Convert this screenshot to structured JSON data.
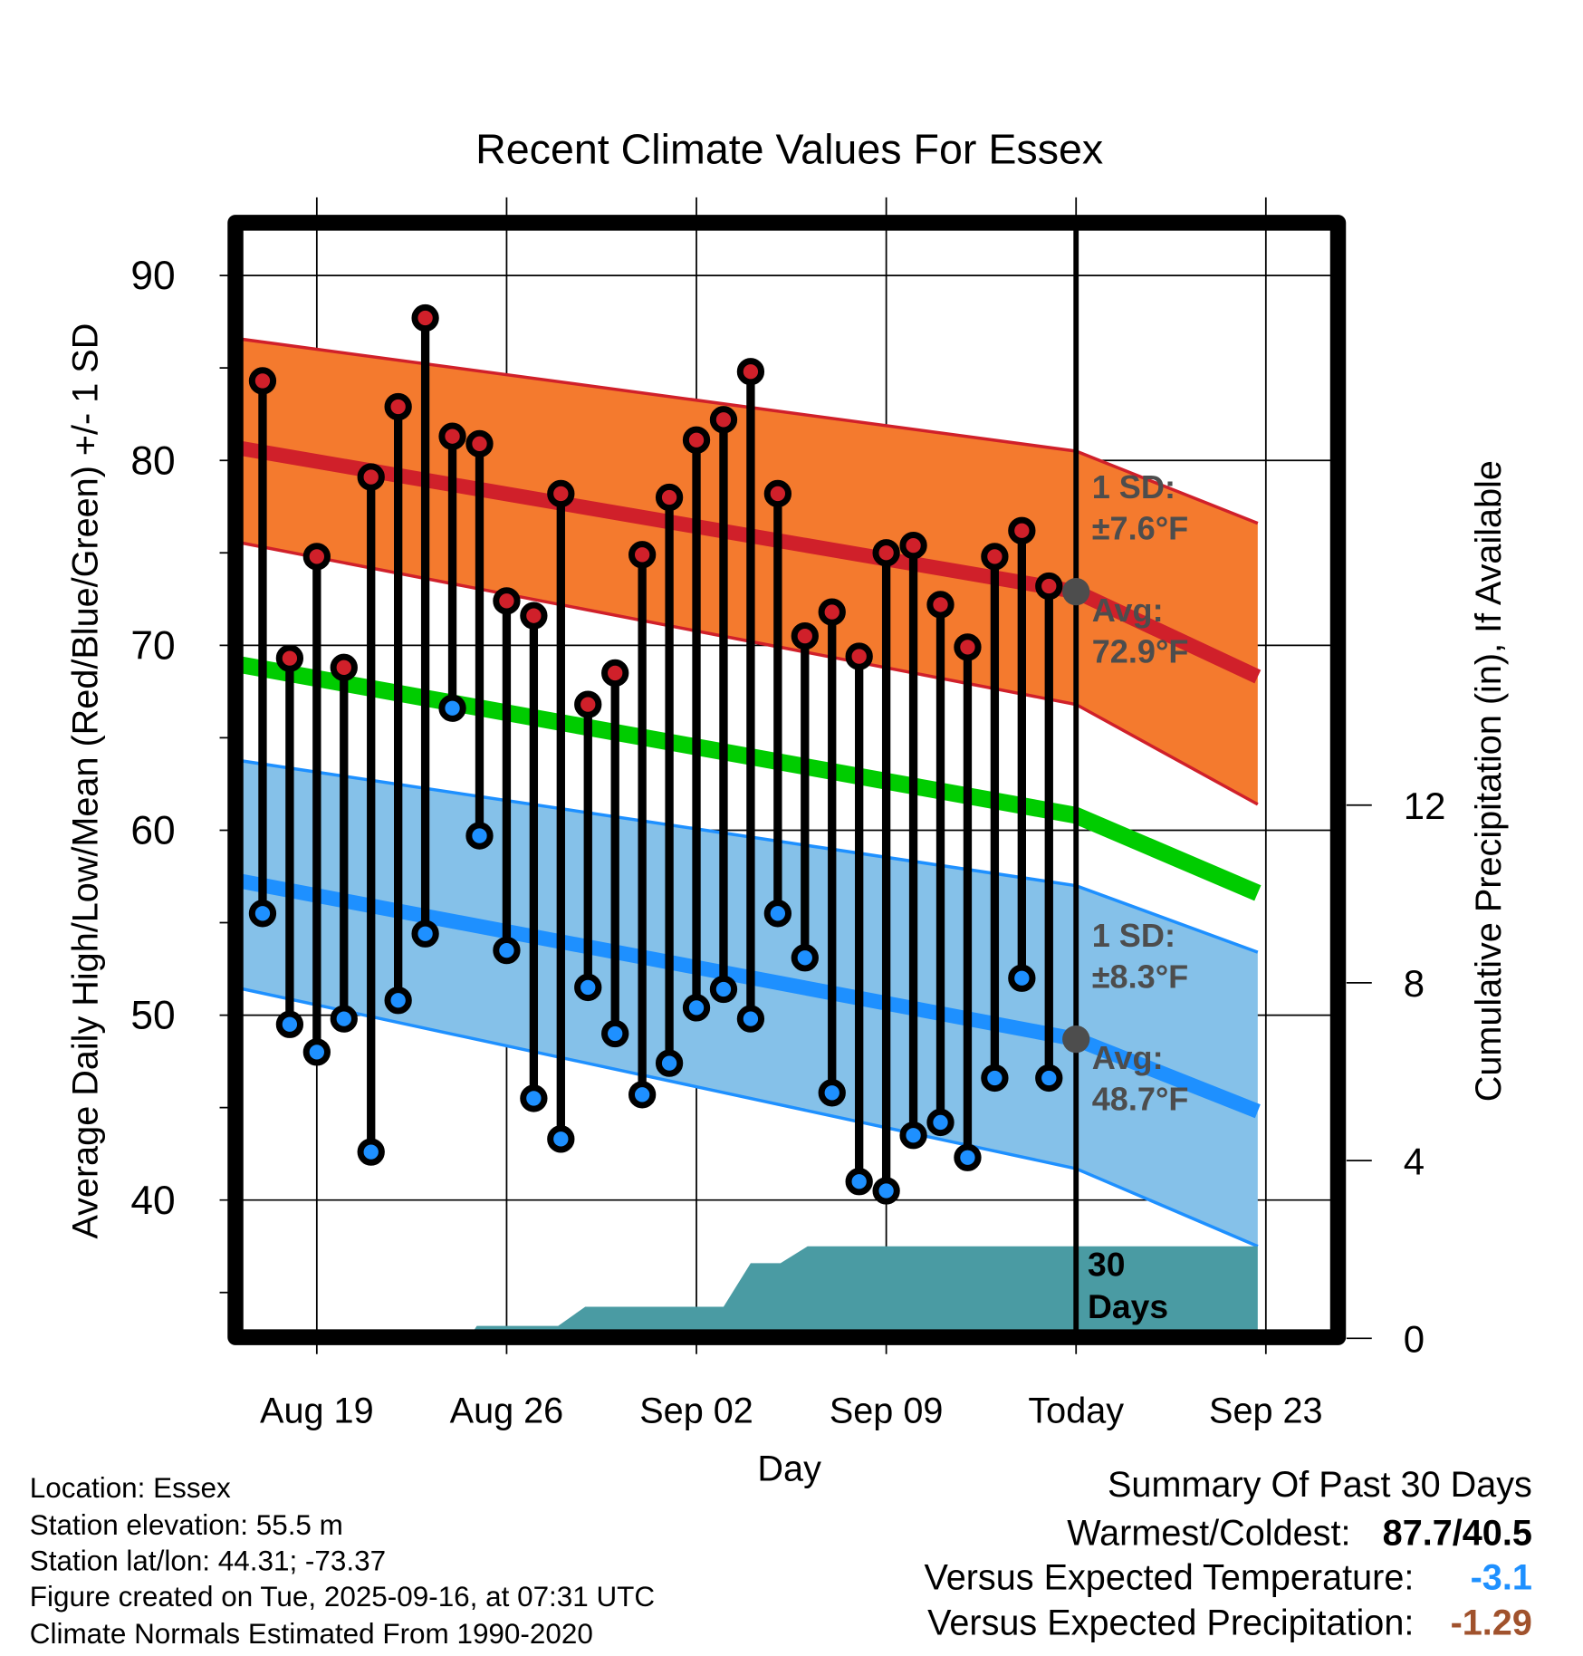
{
  "chart_data": {
    "type": "line",
    "title": "Recent Climate Values For Essex",
    "xlabel": "Day",
    "ylabel": "Average Daily High/Low/Mean (Red/Blue/Green) +/- 1 SD",
    "y2label": "Cumulative Precipitation (in), If Available",
    "ylim": [
      33,
      93
    ],
    "y_ticks": [
      40,
      50,
      60,
      70,
      80,
      90
    ],
    "y2_ticks": [
      0,
      4,
      8,
      12
    ],
    "x_start_date": "Aug 16",
    "x_ticks": [
      {
        "day": 3,
        "label": "Aug 19"
      },
      {
        "day": 10,
        "label": "Aug 26"
      },
      {
        "day": 17,
        "label": "Sep 02"
      },
      {
        "day": 24,
        "label": "Sep 09"
      },
      {
        "day": 31,
        "label": "Today"
      },
      {
        "day": 38,
        "label": "Sep 23"
      }
    ],
    "x_range_days": [
      0,
      37.7
    ],
    "today_day": 31,
    "observations": {
      "days": [
        1,
        2,
        3,
        4,
        5,
        6,
        7,
        8,
        9,
        10,
        11,
        12,
        13,
        14,
        15,
        16,
        17,
        18,
        19,
        20,
        21,
        22,
        23,
        24,
        25,
        26,
        27,
        28,
        29,
        30
      ],
      "high": [
        84.3,
        69.3,
        74.8,
        68.8,
        79.1,
        82.9,
        87.7,
        81.3,
        80.9,
        72.4,
        71.6,
        78.2,
        66.8,
        68.5,
        74.9,
        78.0,
        81.1,
        82.2,
        84.8,
        78.2,
        70.5,
        71.8,
        69.4,
        75.0,
        75.4,
        72.2,
        69.9,
        74.8,
        76.2,
        73.2
      ],
      "low": [
        55.5,
        49.5,
        48.0,
        49.8,
        42.6,
        50.8,
        54.4,
        66.6,
        59.7,
        53.5,
        45.5,
        43.3,
        51.5,
        49.0,
        45.7,
        47.4,
        50.4,
        51.4,
        49.8,
        55.5,
        53.1,
        45.8,
        41.0,
        40.5,
        43.5,
        44.2,
        42.3,
        46.6,
        52.0,
        46.6
      ]
    },
    "normals": {
      "days": [
        0,
        31,
        37.7
      ],
      "high_mean": [
        80.7,
        72.9,
        68.3
      ],
      "high_upper": [
        86.6,
        80.5,
        76.6
      ],
      "high_lower": [
        75.6,
        66.8,
        61.4
      ],
      "mean": [
        69.0,
        60.8,
        56.6
      ],
      "low_mean": [
        57.3,
        48.7,
        44.8
      ],
      "low_upper": [
        63.8,
        57.0,
        53.4
      ],
      "low_lower": [
        51.5,
        41.7,
        37.5
      ]
    },
    "precip_cumulative": {
      "days": [
        0,
        8.6,
        8.9,
        11.9,
        12.9,
        18,
        19,
        20.1,
        21.1,
        37.7
      ],
      "values": [
        0,
        0,
        0.28,
        0.28,
        0.71,
        0.71,
        1.69,
        1.69,
        2.07,
        2.07
      ]
    },
    "annotations": {
      "high_sd": [
        "1 SD:",
        "±7.6°F"
      ],
      "high_avg": [
        "Avg:",
        "72.9°F"
      ],
      "low_sd": [
        "1 SD:",
        "±8.3°F"
      ],
      "low_avg": [
        "Avg:",
        "48.7°F"
      ],
      "precip_window": [
        "30",
        "Days"
      ]
    },
    "colors": {
      "high": "#d0202a",
      "high_band": "#f47a2e",
      "low": "#1e90ff",
      "low_band": "#85c1e9",
      "mean": "#00cc00",
      "precip": "#4a9ba3",
      "annotation": "#4d4d4d"
    }
  },
  "station_info": [
    "Location: Essex",
    "Station elevation: 55.5 m",
    "Station lat/lon: 44.31; -73.37",
    "Figure created on Tue, 2025-09-16, at 07:31 UTC",
    "Climate Normals Estimated From 1990-2020"
  ],
  "summary": {
    "title": "Summary Of Past 30 Days",
    "warmest_coldest_label": "Warmest/Coldest:",
    "warmest_coldest_value": "87.7/40.5",
    "temp_label": "Versus Expected Temperature:",
    "temp_value": "-3.1",
    "temp_color": "#1e90ff",
    "precip_label": "Versus Expected Precipitation:",
    "precip_value": "-1.29",
    "precip_color": "#a0522d"
  }
}
